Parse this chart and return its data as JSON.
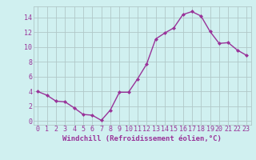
{
  "x": [
    0,
    1,
    2,
    3,
    4,
    5,
    6,
    7,
    8,
    9,
    10,
    11,
    12,
    13,
    14,
    15,
    16,
    17,
    18,
    19,
    20,
    21,
    22,
    23
  ],
  "y": [
    4.0,
    3.5,
    2.7,
    2.6,
    1.8,
    0.9,
    0.8,
    0.1,
    1.5,
    3.9,
    3.9,
    5.7,
    7.7,
    11.1,
    11.9,
    12.6,
    14.4,
    14.8,
    14.2,
    12.1,
    10.5,
    10.6,
    9.6,
    8.9
  ],
  "line_color": "#993399",
  "marker": "D",
  "marker_size": 2,
  "bg_color": "#d0f0f0",
  "grid_color": "#b0c8c8",
  "xlabel": "Windchill (Refroidissement éolien,°C)",
  "xlim": [
    -0.5,
    23.5
  ],
  "ylim": [
    -0.5,
    15.5
  ],
  "xtick_labels": [
    "0",
    "1",
    "2",
    "3",
    "4",
    "5",
    "6",
    "7",
    "8",
    "9",
    "10",
    "11",
    "12",
    "13",
    "14",
    "15",
    "16",
    "17",
    "18",
    "19",
    "20",
    "21",
    "22",
    "23"
  ],
  "ytick_values": [
    0,
    2,
    4,
    6,
    8,
    10,
    12,
    14
  ],
  "font_color": "#993399",
  "font_size": 6,
  "xlabel_fontsize": 6.5,
  "linewidth": 1.0
}
